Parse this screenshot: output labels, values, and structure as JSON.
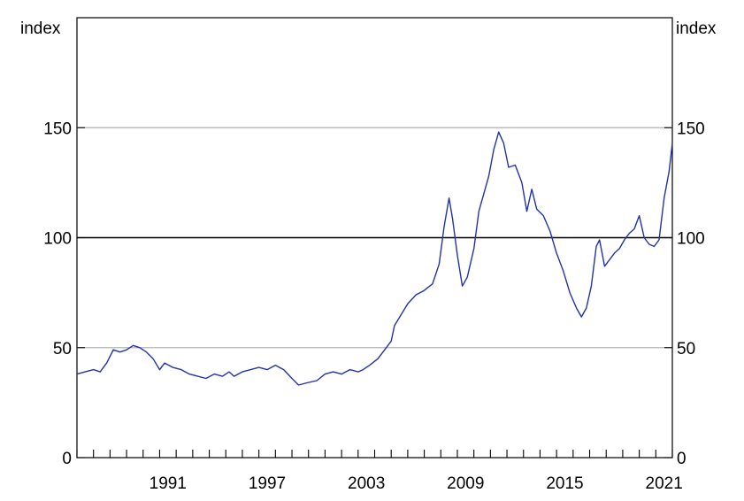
{
  "chart_data": {
    "type": "line",
    "title": "",
    "xlabel": "",
    "ylabel_left": "index",
    "ylabel_right": "index",
    "xlim": [
      1986.0,
      2022.0
    ],
    "ylim": [
      0,
      200
    ],
    "x_ticks": [
      1991,
      1997,
      2003,
      2009,
      2015,
      2021
    ],
    "x_tick_labels": [
      "1991",
      "1997",
      "2003",
      "2009",
      "2015",
      "2021"
    ],
    "y_ticks": [
      0,
      50,
      100,
      150
    ],
    "y_tick_labels": [
      "0",
      "50",
      "100",
      "150"
    ],
    "gridlines": [
      50,
      150
    ],
    "reference_line": 100,
    "grid": true,
    "legend": "none",
    "line_color": "#2233aa",
    "series": [
      {
        "points": [
          [
            1986.0,
            38
          ],
          [
            1986.5,
            39
          ],
          [
            1987.0,
            40
          ],
          [
            1987.4,
            39
          ],
          [
            1987.8,
            43
          ],
          [
            1988.2,
            49
          ],
          [
            1988.6,
            48
          ],
          [
            1989.0,
            49
          ],
          [
            1989.4,
            51
          ],
          [
            1989.8,
            50
          ],
          [
            1990.2,
            48
          ],
          [
            1990.6,
            45
          ],
          [
            1991.0,
            40
          ],
          [
            1991.3,
            43
          ],
          [
            1991.8,
            41
          ],
          [
            1992.3,
            40
          ],
          [
            1992.8,
            38
          ],
          [
            1993.3,
            37
          ],
          [
            1993.8,
            36
          ],
          [
            1994.3,
            38
          ],
          [
            1994.8,
            37
          ],
          [
            1995.2,
            39
          ],
          [
            1995.5,
            37
          ],
          [
            1996.0,
            39
          ],
          [
            1996.5,
            40
          ],
          [
            1997.0,
            41
          ],
          [
            1997.5,
            40
          ],
          [
            1998.0,
            42
          ],
          [
            1998.5,
            40
          ],
          [
            1999.0,
            36
          ],
          [
            1999.4,
            33
          ],
          [
            1999.9,
            34
          ],
          [
            2000.5,
            35
          ],
          [
            2001.0,
            38
          ],
          [
            2001.5,
            39
          ],
          [
            2002.0,
            38
          ],
          [
            2002.5,
            40
          ],
          [
            2003.0,
            39
          ],
          [
            2003.3,
            40
          ],
          [
            2003.7,
            42
          ],
          [
            2004.2,
            45
          ],
          [
            2004.7,
            50
          ],
          [
            2005.0,
            53
          ],
          [
            2005.2,
            60
          ],
          [
            2005.6,
            65
          ],
          [
            2006.0,
            70
          ],
          [
            2006.5,
            74
          ],
          [
            2007.0,
            76
          ],
          [
            2007.5,
            79
          ],
          [
            2007.9,
            88
          ],
          [
            2008.2,
            105
          ],
          [
            2008.5,
            118
          ],
          [
            2008.7,
            109
          ],
          [
            2009.0,
            92
          ],
          [
            2009.3,
            78
          ],
          [
            2009.6,
            82
          ],
          [
            2010.0,
            95
          ],
          [
            2010.3,
            112
          ],
          [
            2010.6,
            120
          ],
          [
            2010.9,
            128
          ],
          [
            2011.2,
            140
          ],
          [
            2011.5,
            148
          ],
          [
            2011.8,
            143
          ],
          [
            2012.1,
            132
          ],
          [
            2012.5,
            133
          ],
          [
            2012.9,
            125
          ],
          [
            2013.2,
            112
          ],
          [
            2013.5,
            122
          ],
          [
            2013.8,
            113
          ],
          [
            2014.2,
            110
          ],
          [
            2014.6,
            103
          ],
          [
            2015.0,
            93
          ],
          [
            2015.4,
            85
          ],
          [
            2015.8,
            75
          ],
          [
            2016.2,
            68
          ],
          [
            2016.5,
            64
          ],
          [
            2016.8,
            68
          ],
          [
            2017.1,
            78
          ],
          [
            2017.4,
            96
          ],
          [
            2017.6,
            99
          ],
          [
            2017.9,
            87
          ],
          [
            2018.2,
            90
          ],
          [
            2018.5,
            93
          ],
          [
            2018.8,
            95
          ],
          [
            2019.1,
            99
          ],
          [
            2019.4,
            102
          ],
          [
            2019.7,
            104
          ],
          [
            2020.0,
            110
          ],
          [
            2020.3,
            100
          ],
          [
            2020.6,
            97
          ],
          [
            2020.9,
            96
          ],
          [
            2021.2,
            99
          ],
          [
            2021.5,
            118
          ],
          [
            2021.8,
            130
          ],
          [
            2022.0,
            143
          ]
        ]
      }
    ]
  }
}
